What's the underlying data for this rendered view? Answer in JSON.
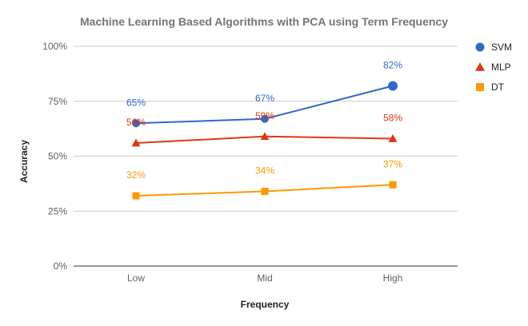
{
  "chart_data": {
    "type": "line",
    "title": "Machine Learning Based Algorithms with PCA using Term Frequency",
    "xlabel": "Frequency",
    "ylabel": "Accuracy",
    "categories": [
      "Low",
      "Mid",
      "High"
    ],
    "ylim": [
      0,
      100
    ],
    "yticks": [
      0,
      25,
      50,
      75,
      100
    ],
    "ytick_labels": [
      "0%",
      "25%",
      "50%",
      "75%",
      "100%"
    ],
    "grid": true,
    "legend_position": "right",
    "series": [
      {
        "name": "SVM",
        "values": [
          65,
          67,
          82
        ],
        "labels": [
          "65%",
          "67%",
          "82%"
        ],
        "color": "#3366cc",
        "marker": "circle"
      },
      {
        "name": "MLP",
        "values": [
          56,
          59,
          58
        ],
        "labels": [
          "56%",
          "59%",
          "58%"
        ],
        "color": "#dc3912",
        "marker": "triangle"
      },
      {
        "name": "DT",
        "values": [
          32,
          34,
          37
        ],
        "labels": [
          "32%",
          "34%",
          "37%"
        ],
        "color": "#ff9900",
        "marker": "square"
      }
    ]
  }
}
